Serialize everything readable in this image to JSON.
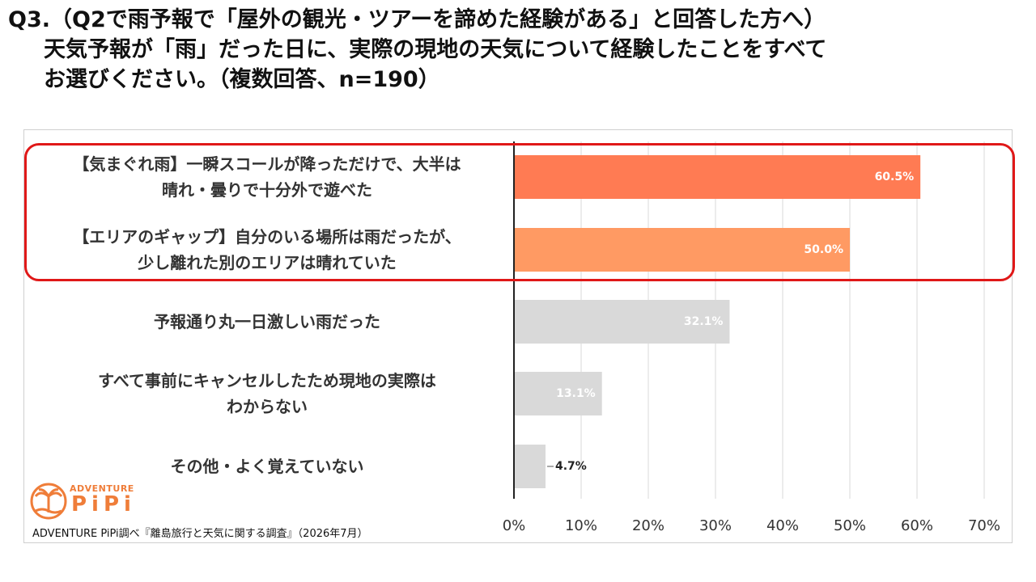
{
  "title": {
    "line1": "Q3.（Q2で雨予報で「屋外の観光・ツアーを諦めた経験がある」と回答した方へ）",
    "line2": "天気予報が「雨」だった日に、実際の現地の天気について経験したことをすべて",
    "line3": "お選びください。（複数回答、n=190）"
  },
  "logo": {
    "top": "ADVENTURE",
    "main": "PiPi"
  },
  "source": "ADVENTURE PiPi調べ『離島旅行と天気に関する調査』（2026年7月）",
  "colors": {
    "top1": "#ff7b53",
    "top2": "#ff9a63",
    "other": "#d9d9d9",
    "highlight": "#e01818"
  },
  "chart_data": {
    "type": "bar",
    "orientation": "horizontal",
    "categories": [
      [
        "【気まぐれ雨】一瞬スコールが降っただけで、大半は",
        "晴れ・曇りで十分外で遊べた"
      ],
      [
        "【エリアのギャップ】自分のいる場所は雨だったが、",
        "少し離れた別のエリアは晴れていた"
      ],
      [
        "予報通り丸一日激しい雨だった"
      ],
      [
        "すべて事前にキャンセルしたため現地の実際は",
        "わからない"
      ],
      [
        "その他・よく覚えていない"
      ]
    ],
    "values": [
      60.5,
      50.0,
      32.1,
      13.1,
      4.7
    ],
    "value_labels": [
      "60.5%",
      "50.0%",
      "32.1%",
      "13.1%",
      "4.7%"
    ],
    "xlim": [
      0,
      70
    ],
    "xticks": [
      0,
      10,
      20,
      30,
      40,
      50,
      60,
      70
    ],
    "xtick_labels": [
      "0%",
      "10%",
      "20%",
      "30%",
      "40%",
      "50%",
      "60%",
      "70%"
    ],
    "grid": true
  }
}
